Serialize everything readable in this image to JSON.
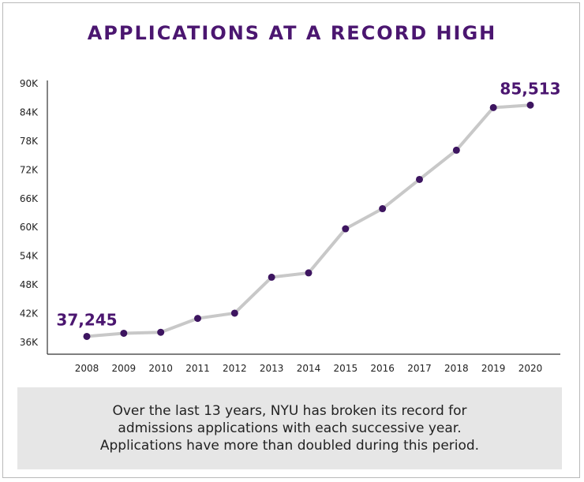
{
  "chart_data": {
    "type": "line",
    "title": "APPLICATIONS AT A RECORD HIGH",
    "xlabel": "",
    "ylabel": "",
    "categories": [
      "2008",
      "2009",
      "2010",
      "2011",
      "2012",
      "2013",
      "2014",
      "2015",
      "2016",
      "2017",
      "2018",
      "2019",
      "2020"
    ],
    "series": [
      {
        "values": [
          37245,
          37900,
          38100,
          41000,
          42100,
          49600,
          50500,
          59700,
          63900,
          70000,
          76100,
          85000,
          85513
        ]
      }
    ],
    "y_ticks": [
      36000,
      42000,
      48000,
      54000,
      60000,
      66000,
      72000,
      78000,
      84000,
      90000
    ],
    "y_tick_labels": [
      "36K",
      "42K",
      "48K",
      "54K",
      "60K",
      "66K",
      "72K",
      "78K",
      "84K",
      "90K"
    ],
    "ylim": [
      36000,
      90000
    ],
    "grid": false,
    "annotations": [
      {
        "category": "2008",
        "text": "37,245"
      },
      {
        "category": "2020",
        "text": "85,513"
      }
    ],
    "line_color": "#c8c8c8",
    "marker_color": "#3d1560",
    "label_color": "#4b1670"
  },
  "note": {
    "lines": [
      "Over the last 13 years, NYU has broken its record for",
      "admissions applications with each successive year.",
      "Applications have more than doubled during this period."
    ]
  }
}
